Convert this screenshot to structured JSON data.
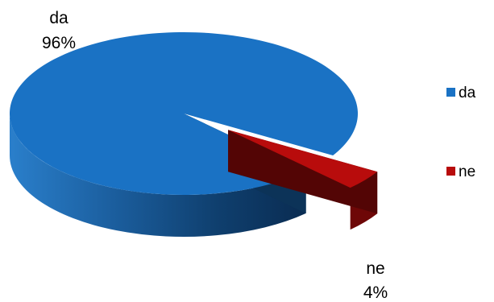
{
  "chart_data": {
    "type": "pie",
    "style": "3d-exploded",
    "title": "",
    "legend_position": "right",
    "slices": [
      {
        "category": "da",
        "value": 96,
        "percent_label": "96%",
        "color": "#1a72c4",
        "exploded": false
      },
      {
        "category": "ne",
        "value": 4,
        "percent_label": "4%",
        "color": "#b80c0c",
        "exploded": true
      }
    ],
    "legend": [
      {
        "label": "da",
        "color": "#1a72c4"
      },
      {
        "label": "ne",
        "color": "#b80c0c"
      }
    ]
  }
}
